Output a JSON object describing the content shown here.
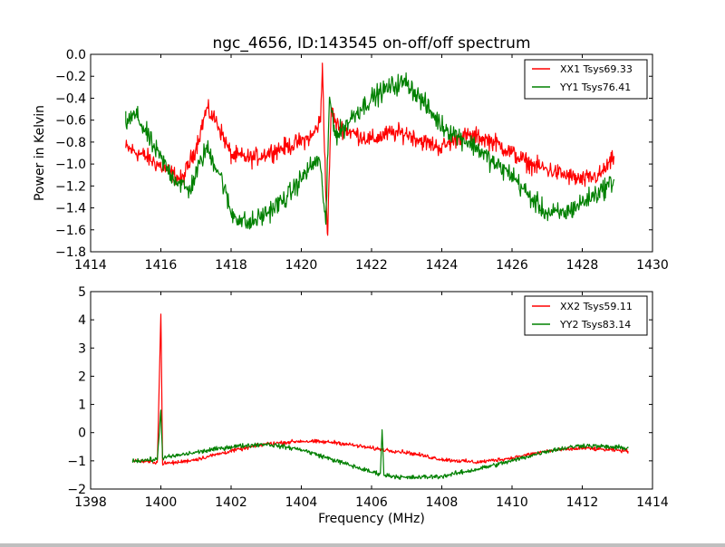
{
  "chart_data": [
    {
      "type": "line",
      "title": "ngc_4656, ID:143545 on-off/off spectrum",
      "xlabel": "",
      "ylabel": "Power in Kelvin",
      "xlim": [
        1414,
        1430
      ],
      "ylim": [
        -1.8,
        0.0
      ],
      "xticks": [
        1414,
        1416,
        1418,
        1420,
        1422,
        1424,
        1426,
        1428,
        1430
      ],
      "xtick_labels": [
        "1414",
        "1416",
        "1418",
        "1420",
        "1422",
        "1424",
        "1426",
        "1428",
        "1430"
      ],
      "yticks": [
        0.0,
        -0.2,
        -0.4,
        -0.6,
        -0.8,
        -1.0,
        -1.2,
        -1.4,
        -1.6,
        -1.8
      ],
      "ytick_labels": [
        "0.0",
        "−0.2",
        "−0.4",
        "−0.6",
        "−0.8",
        "−1.0",
        "−1.2",
        "−1.4",
        "−1.6",
        "−1.8"
      ],
      "grid": false,
      "legend_position": "top-right",
      "series": [
        {
          "name": "XX1 Tsys69.33",
          "color": "#ff0000",
          "noise": 0.07,
          "x": [
            1415.0,
            1415.5,
            1416.0,
            1416.6,
            1417.0,
            1417.3,
            1417.6,
            1418.0,
            1418.6,
            1419.2,
            1419.8,
            1420.3,
            1420.55,
            1420.6,
            1420.7,
            1420.75,
            1420.85,
            1421.0,
            1421.5,
            1422.0,
            1422.5,
            1423.0,
            1423.5,
            1424.0,
            1424.5,
            1425.0,
            1425.5,
            1426.0,
            1426.5,
            1427.0,
            1427.5,
            1428.0,
            1428.5,
            1428.9
          ],
          "y": [
            -0.85,
            -0.92,
            -1.02,
            -1.15,
            -0.85,
            -0.5,
            -0.62,
            -0.92,
            -0.95,
            -0.88,
            -0.82,
            -0.75,
            -0.6,
            -0.08,
            -1.3,
            -1.65,
            -0.5,
            -0.65,
            -0.72,
            -0.78,
            -0.72,
            -0.72,
            -0.8,
            -0.85,
            -0.75,
            -0.75,
            -0.8,
            -0.9,
            -1.0,
            -1.05,
            -1.1,
            -1.15,
            -1.1,
            -0.95
          ]
        },
        {
          "name": "YY1 Tsys76.41",
          "color": "#008000",
          "noise": 0.08,
          "x": [
            1415.0,
            1415.3,
            1415.8,
            1416.3,
            1416.8,
            1417.3,
            1417.7,
            1418.0,
            1418.5,
            1419.0,
            1419.6,
            1420.2,
            1420.5,
            1420.6,
            1420.7,
            1420.8,
            1421.0,
            1421.5,
            1422.0,
            1422.5,
            1423.0,
            1423.5,
            1424.0,
            1424.5,
            1425.0,
            1425.5,
            1426.0,
            1426.5,
            1427.0,
            1427.5,
            1428.0,
            1428.5,
            1428.9
          ],
          "y": [
            -0.62,
            -0.55,
            -0.85,
            -1.1,
            -1.25,
            -0.85,
            -1.1,
            -1.45,
            -1.55,
            -1.45,
            -1.3,
            -1.05,
            -0.95,
            -1.2,
            -1.55,
            -0.4,
            -0.75,
            -0.55,
            -0.4,
            -0.3,
            -0.25,
            -0.45,
            -0.65,
            -0.75,
            -0.85,
            -1.0,
            -1.1,
            -1.3,
            -1.45,
            -1.45,
            -1.35,
            -1.25,
            -1.15
          ]
        }
      ]
    },
    {
      "type": "line",
      "title": "",
      "xlabel": "Frequency (MHz)",
      "ylabel": "",
      "xlim": [
        1398,
        1414
      ],
      "ylim": [
        -2,
        5
      ],
      "xticks": [
        1398,
        1400,
        1402,
        1404,
        1406,
        1408,
        1410,
        1412,
        1414
      ],
      "xtick_labels": [
        "1398",
        "1400",
        "1402",
        "1404",
        "1406",
        "1408",
        "1410",
        "1412",
        "1414"
      ],
      "yticks": [
        5,
        4,
        3,
        2,
        1,
        0,
        -1,
        -2
      ],
      "ytick_labels": [
        "5",
        "4",
        "3",
        "2",
        "1",
        "0",
        "−1",
        "−2"
      ],
      "grid": false,
      "legend_position": "top-right",
      "series": [
        {
          "name": "XX2 Tsys59.11",
          "color": "#ff0000",
          "noise": 0.06,
          "x": [
            1399.2,
            1399.9,
            1400.0,
            1400.05,
            1400.5,
            1401.0,
            1402.0,
            1403.0,
            1404.0,
            1405.0,
            1406.0,
            1407.0,
            1408.0,
            1409.0,
            1410.0,
            1411.0,
            1412.0,
            1413.3
          ],
          "y": [
            -1.0,
            -1.05,
            4.2,
            -1.1,
            -1.05,
            -0.95,
            -0.65,
            -0.4,
            -0.3,
            -0.35,
            -0.55,
            -0.7,
            -0.95,
            -1.05,
            -0.9,
            -0.65,
            -0.55,
            -0.65
          ]
        },
        {
          "name": "YY2 Tsys83.14",
          "color": "#008000",
          "noise": 0.07,
          "x": [
            1399.2,
            1399.9,
            1400.0,
            1400.05,
            1401.0,
            1402.0,
            1403.0,
            1404.0,
            1405.0,
            1406.0,
            1406.25,
            1406.3,
            1406.35,
            1407.0,
            1408.0,
            1409.0,
            1410.0,
            1411.0,
            1412.0,
            1413.3
          ],
          "y": [
            -1.0,
            -0.95,
            0.8,
            -0.9,
            -0.7,
            -0.5,
            -0.4,
            -0.6,
            -1.0,
            -1.4,
            -1.45,
            0.1,
            -1.5,
            -1.6,
            -1.55,
            -1.3,
            -1.0,
            -0.65,
            -0.45,
            -0.55
          ]
        }
      ]
    }
  ]
}
